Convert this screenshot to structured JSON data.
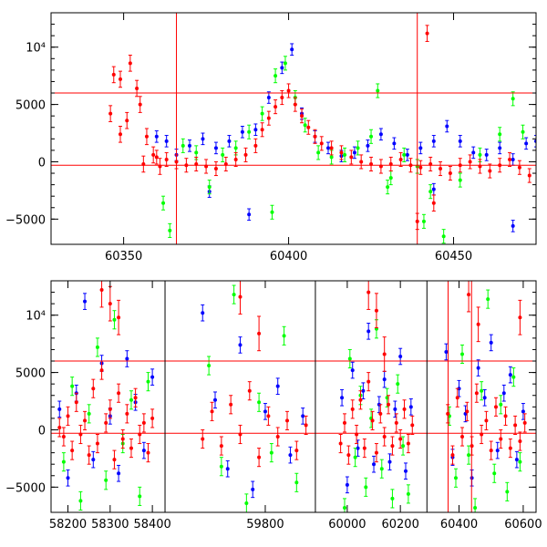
{
  "chart_data": [
    {
      "type": "scatter",
      "title": "",
      "xlabel": "",
      "ylabel": "",
      "xlim": [
        60328,
        60475
      ],
      "ylim": [
        -7200,
        13000
      ],
      "xticks": [
        60350,
        60400,
        60450
      ],
      "xtick_labels": [
        "60350",
        "60400",
        "60450"
      ],
      "yticks": [
        -5000,
        0,
        5000,
        10000
      ],
      "ytick_labels": [
        "−5000",
        "0",
        "5000",
        "10⁴"
      ],
      "error_bars": true,
      "grid": false,
      "hlines": [
        6000,
        -300
      ],
      "vlines": [
        60366,
        60439
      ],
      "series": [
        {
          "color": "#0000ff",
          "x": [
            60360,
            60363,
            60366,
            60370,
            60374,
            60378,
            60382,
            60386,
            60390,
            60394,
            60398,
            60401,
            60404,
            60408,
            60412,
            60416,
            60420,
            60424,
            60428,
            60432,
            60436,
            60440,
            60444,
            60448,
            60452,
            60456,
            60460,
            60464,
            60468,
            60472,
            60475,
            60376,
            60388,
            60444,
            60468
          ],
          "y": [
            2200,
            1800,
            600,
            1400,
            2000,
            1200,
            1800,
            2600,
            2800,
            5600,
            8200,
            9800,
            4200,
            2200,
            1200,
            500,
            800,
            1400,
            2400,
            1600,
            600,
            1200,
            1800,
            3100,
            1800,
            800,
            600,
            1200,
            200,
            1600,
            1800,
            -2600,
            -4600,
            -2400,
            -5600
          ],
          "err": [
            500,
            500,
            500,
            500,
            500,
            500,
            500,
            500,
            500,
            500,
            500,
            500,
            500,
            500,
            500,
            500,
            500,
            500,
            500,
            500,
            500,
            500,
            500,
            500,
            500,
            500,
            500,
            500,
            500,
            500,
            500,
            500,
            500,
            500,
            500
          ]
        },
        {
          "color": "#00ff00",
          "x": [
            60362,
            60364,
            60368,
            60372,
            60376,
            60380,
            60384,
            60388,
            60392,
            60396,
            60399,
            60402,
            60405,
            60409,
            60413,
            60417,
            60421,
            60425,
            60427,
            60431,
            60435,
            60439,
            60443,
            60447,
            60452,
            60458,
            60464,
            60468,
            60471,
            60395,
            60430,
            60441
          ],
          "y": [
            -3600,
            -6000,
            1400,
            800,
            -2200,
            600,
            1200,
            2600,
            4200,
            7500,
            8600,
            5600,
            3200,
            800,
            400,
            600,
            1200,
            2200,
            6200,
            -1400,
            600,
            -400,
            -2600,
            -6500,
            -1600,
            600,
            2400,
            5500,
            2600,
            -4400,
            -2200,
            -5200
          ],
          "err": [
            600,
            600,
            600,
            600,
            600,
            600,
            600,
            600,
            600,
            600,
            600,
            600,
            600,
            600,
            600,
            600,
            600,
            600,
            600,
            600,
            600,
            600,
            600,
            600,
            600,
            600,
            600,
            600,
            600,
            600,
            600,
            600
          ]
        },
        {
          "color": "#ff0000",
          "x": [
            60347,
            60349,
            60352,
            60354,
            60355,
            60357,
            60359,
            60361,
            60346,
            60349,
            60351,
            60356,
            60360,
            60363,
            60366,
            60369,
            60372,
            60375,
            60378,
            60381,
            60384,
            60387,
            60390,
            60392,
            60394,
            60396,
            60398,
            60400,
            60402,
            60404,
            60406,
            60408,
            60410,
            60413,
            60416,
            60419,
            60422,
            60425,
            60428,
            60431,
            60434,
            60437,
            60440,
            60443,
            60446,
            60449,
            60452,
            60455,
            60458,
            60461,
            60464,
            60467,
            60470,
            60473,
            60439,
            60442,
            60444
          ],
          "y": [
            7600,
            7200,
            8600,
            6400,
            5000,
            2200,
            600,
            -400,
            4200,
            2400,
            3600,
            -200,
            400,
            200,
            0,
            -300,
            -200,
            -400,
            -600,
            -200,
            200,
            600,
            1400,
            2800,
            3800,
            4800,
            5600,
            6200,
            5000,
            4000,
            3000,
            2200,
            1600,
            1200,
            800,
            400,
            0,
            -200,
            -400,
            -200,
            200,
            -300,
            -500,
            -200,
            -600,
            -1000,
            -300,
            0,
            -400,
            -800,
            -300,
            200,
            -500,
            -1200,
            -5200,
            11200,
            -3600
          ],
          "err": [
            700,
            700,
            700,
            700,
            700,
            700,
            700,
            700,
            700,
            700,
            700,
            700,
            600,
            600,
            600,
            600,
            600,
            600,
            600,
            600,
            600,
            600,
            600,
            600,
            600,
            600,
            600,
            600,
            600,
            600,
            600,
            600,
            600,
            600,
            600,
            600,
            600,
            600,
            600,
            600,
            600,
            600,
            600,
            600,
            600,
            600,
            600,
            600,
            600,
            600,
            600,
            600,
            600,
            600,
            700,
            700,
            700
          ]
        }
      ]
    },
    {
      "type": "scatter",
      "title": "",
      "xlabel": "",
      "ylabel": "",
      "xlim": [
        58130,
        60640
      ],
      "ylim": [
        -7200,
        13000
      ],
      "xticks": [
        58200,
        58300,
        58400,
        59800,
        60000,
        60200,
        60400,
        60600
      ],
      "xtick_labels": [
        "58200",
        "58300",
        "58400",
        "59800",
        "60000",
        "60200",
        "60400",
        "60600"
      ],
      "yticks": [
        -5000,
        0,
        5000,
        10000
      ],
      "ytick_labels": [
        "−5000",
        "0",
        "5000",
        "10⁴"
      ],
      "error_bars": true,
      "grid": false,
      "broken_x_axis": true,
      "hlines": [
        6000,
        -300
      ],
      "vlines": [
        60366,
        60439
      ],
      "series": [
        {
          "color": "#0000ff",
          "x": [
            58180,
            58200,
            58220,
            58240,
            58260,
            58280,
            58300,
            58320,
            58340,
            58360,
            58380,
            58400,
            59700,
            59720,
            59740,
            59760,
            59780,
            59800,
            59820,
            59840,
            59860,
            59980,
            60000,
            60020,
            60040,
            60060,
            60080,
            60100,
            60120,
            60140,
            60160,
            60180,
            60200,
            60220,
            60240,
            60360,
            60380,
            60400,
            60420,
            60440,
            60460,
            60480,
            60500,
            60520,
            60540,
            60560,
            60580,
            60600
          ],
          "y": [
            1800,
            -4200,
            3200,
            11200,
            -2600,
            5800,
            1200,
            -3800,
            6200,
            2400,
            -1800,
            4600,
            10200,
            2600,
            -3400,
            7400,
            -5200,
            1600,
            3800,
            -2200,
            1200,
            2800,
            -4800,
            5200,
            -1600,
            3400,
            8600,
            -3000,
            2200,
            4400,
            -2800,
            1800,
            6400,
            -3600,
            2000,
            6800,
            -2400,
            3600,
            1400,
            -4200,
            5400,
            2800,
            7600,
            -1800,
            3200,
            4800,
            -2600,
            1600
          ],
          "err": [
            700,
            700,
            700,
            700,
            700,
            700,
            700,
            700,
            700,
            700,
            700,
            700,
            700,
            700,
            700,
            700,
            700,
            700,
            700,
            700,
            700,
            700,
            700,
            700,
            700,
            700,
            700,
            700,
            700,
            700,
            700,
            700,
            700,
            700,
            700,
            700,
            700,
            700,
            700,
            700,
            700,
            700,
            700,
            700,
            700,
            700,
            700,
            700
          ]
        },
        {
          "color": "#00ff00",
          "x": [
            58190,
            58210,
            58230,
            58250,
            58270,
            58290,
            58310,
            58330,
            58350,
            58370,
            58390,
            59710,
            59730,
            59750,
            59770,
            59790,
            59810,
            59830,
            59850,
            59990,
            60010,
            60030,
            60050,
            60070,
            60090,
            60110,
            60130,
            60150,
            60170,
            60190,
            60210,
            60230,
            60370,
            60390,
            60410,
            60430,
            60450,
            60470,
            60490,
            60510,
            60530,
            60550,
            60570,
            60590
          ],
          "y": [
            -2800,
            3800,
            -6200,
            1400,
            7200,
            -4400,
            9600,
            -1200,
            2600,
            -5800,
            4200,
            5600,
            -3200,
            11800,
            -6400,
            2400,
            -2000,
            8200,
            -4600,
            -6800,
            6200,
            -2400,
            3000,
            -5000,
            1000,
            8800,
            -3400,
            2800,
            -6000,
            4000,
            -1400,
            -5600,
            1200,
            -4200,
            6600,
            -2200,
            -6800,
            3400,
            11400,
            -3800,
            2200,
            -5400,
            4600,
            -2800
          ],
          "err": [
            800,
            800,
            800,
            800,
            800,
            800,
            800,
            800,
            800,
            800,
            800,
            800,
            800,
            800,
            800,
            800,
            800,
            800,
            800,
            800,
            800,
            800,
            800,
            800,
            800,
            800,
            800,
            800,
            800,
            800,
            800,
            800,
            800,
            800,
            800,
            800,
            800,
            800,
            800,
            800,
            800,
            800,
            800,
            800
          ]
        },
        {
          "color": "#ff0000",
          "x": [
            58180,
            58190,
            58200,
            58210,
            58220,
            58230,
            58240,
            58250,
            58260,
            58270,
            58280,
            58290,
            58300,
            58310,
            58320,
            58330,
            58340,
            58350,
            58360,
            58370,
            58380,
            58390,
            58400,
            59700,
            59715,
            59730,
            59745,
            59760,
            59775,
            59790,
            59805,
            59820,
            59835,
            59850,
            59865,
            59975,
            59990,
            60005,
            60020,
            60035,
            60050,
            60065,
            60080,
            60095,
            60110,
            60125,
            60140,
            60155,
            60170,
            60185,
            60200,
            60215,
            60230,
            60245,
            60365,
            60380,
            60395,
            60410,
            60425,
            60440,
            60455,
            60470,
            60485,
            60500,
            60515,
            60530,
            60545,
            60560,
            60575,
            60590,
            60605,
            58280,
            58300,
            58320,
            59760,
            59790,
            60080,
            60110,
            60140,
            60430,
            60460,
            60590
          ],
          "y": [
            200,
            -600,
            1200,
            -1800,
            2400,
            -400,
            800,
            -2200,
            3600,
            -1200,
            5200,
            600,
            1800,
            -2600,
            3200,
            -800,
            1400,
            -1600,
            2800,
            -400,
            600,
            -2000,
            1000,
            -800,
            1600,
            -1400,
            2200,
            -400,
            3400,
            -2400,
            1200,
            -600,
            800,
            -1800,
            400,
            -1200,
            600,
            -2200,
            1800,
            -400,
            2600,
            -1600,
            4200,
            800,
            -2000,
            1400,
            -600,
            2200,
            -1400,
            600,
            -800,
            1800,
            -1200,
            400,
            1400,
            -2200,
            2800,
            -600,
            1600,
            -1400,
            3200,
            -400,
            800,
            -1800,
            2000,
            -800,
            1200,
            -1600,
            400,
            -1000,
            600,
            12200,
            11000,
            9800,
            11600,
            8400,
            12000,
            10400,
            6600,
            11800,
            9200,
            9800
          ],
          "err": [
            800,
            800,
            800,
            800,
            800,
            800,
            800,
            800,
            800,
            800,
            800,
            800,
            800,
            800,
            800,
            800,
            800,
            800,
            800,
            800,
            800,
            800,
            800,
            800,
            800,
            800,
            800,
            800,
            800,
            800,
            800,
            800,
            800,
            800,
            800,
            800,
            800,
            800,
            800,
            800,
            800,
            800,
            800,
            800,
            800,
            800,
            800,
            800,
            800,
            800,
            800,
            800,
            800,
            800,
            800,
            800,
            800,
            800,
            800,
            800,
            800,
            800,
            800,
            800,
            800,
            800,
            800,
            800,
            800,
            800,
            800,
            1500,
            1500,
            1500,
            1500,
            1500,
            1500,
            1500,
            1500,
            1500,
            1500,
            1500
          ]
        }
      ]
    }
  ]
}
